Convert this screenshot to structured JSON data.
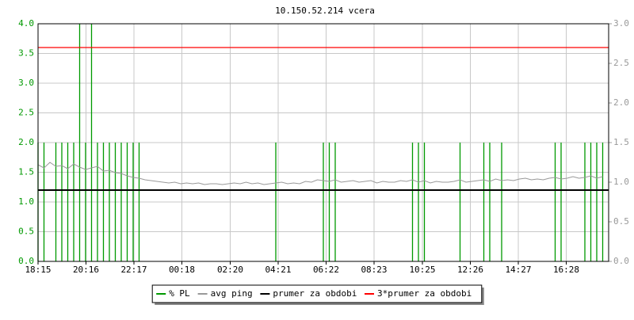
{
  "chart_data": {
    "type": "line",
    "title": "10.150.52.214 vcera",
    "x": [
      "18:15",
      "18:30",
      "18:45",
      "19:00",
      "19:15",
      "19:30",
      "19:45",
      "20:00",
      "20:15",
      "20:30",
      "20:45",
      "21:00",
      "21:15",
      "21:30",
      "21:45",
      "22:00",
      "22:15",
      "22:30",
      "22:45",
      "23:00",
      "23:15",
      "23:30",
      "23:45",
      "00:00",
      "00:15",
      "00:30",
      "00:45",
      "01:00",
      "01:15",
      "01:30",
      "01:45",
      "02:00",
      "02:15",
      "02:30",
      "02:45",
      "03:00",
      "03:15",
      "03:30",
      "03:45",
      "04:00",
      "04:15",
      "04:30",
      "04:45",
      "05:00",
      "05:15",
      "05:30",
      "05:45",
      "06:00",
      "06:15",
      "06:30",
      "06:45",
      "07:00",
      "07:15",
      "07:30",
      "07:45",
      "08:00",
      "08:15",
      "08:30",
      "08:45",
      "09:00",
      "09:15",
      "09:30",
      "09:45",
      "10:00",
      "10:15",
      "10:30",
      "10:45",
      "11:00",
      "11:15",
      "11:30",
      "11:45",
      "12:00",
      "12:15",
      "12:30",
      "12:45",
      "13:00",
      "13:15",
      "13:30",
      "13:45",
      "14:00",
      "14:15",
      "14:30",
      "14:45",
      "15:00",
      "15:15",
      "15:30",
      "15:45",
      "16:00",
      "16:15",
      "16:30",
      "16:45",
      "17:00",
      "17:15",
      "17:30",
      "17:45",
      "18:00"
    ],
    "xlim": [
      "18:15",
      "18:15"
    ],
    "xticks": [
      "18:15",
      "20:16",
      "22:17",
      "00:18",
      "02:20",
      "04:21",
      "06:22",
      "08:23",
      "10:25",
      "12:26",
      "14:27",
      "16:28"
    ],
    "ylim": [
      0,
      4
    ],
    "yticks": [
      {
        "value": 0,
        "label": "0.0"
      },
      0.5,
      {
        "value": 1,
        "label": "1.0"
      },
      1.5,
      {
        "value": 2,
        "label": "2.0"
      },
      2.5,
      {
        "value": 3,
        "label": "3.0"
      },
      3.5,
      {
        "value": 4,
        "label": "4.0"
      }
    ],
    "y2lim": [
      0,
      3
    ],
    "y2ticks": [
      {
        "value": 0,
        "label": "0.0"
      },
      0.5,
      {
        "value": 1,
        "label": "1.0"
      },
      1.5,
      {
        "value": 2,
        "label": "2.0"
      },
      2.5,
      {
        "value": 3,
        "label": "3.0"
      }
    ],
    "grid": true,
    "legend": "bottom",
    "series": [
      {
        "name": "% PL",
        "color": "#009900",
        "axis": "y",
        "style": "impulse",
        "values": [
          2,
          2,
          0,
          2,
          2,
          2,
          2,
          4,
          2,
          4,
          2,
          2,
          2,
          2,
          2,
          2,
          2,
          2,
          0,
          0,
          0,
          0,
          0,
          0,
          0,
          0,
          0,
          0,
          0,
          0,
          0,
          0,
          0,
          0,
          0,
          0,
          0,
          0,
          0,
          0,
          2,
          0,
          0,
          0,
          0,
          0,
          0,
          0,
          2,
          2,
          2,
          0,
          0,
          0,
          0,
          0,
          0,
          0,
          0,
          0,
          0,
          0,
          0,
          2,
          2,
          2,
          0,
          0,
          0,
          0,
          0,
          2,
          0,
          0,
          0,
          2,
          2,
          0,
          2,
          0,
          0,
          0,
          0,
          0,
          0,
          0,
          0,
          2,
          2,
          0,
          0,
          0,
          2,
          2,
          2,
          2
        ]
      },
      {
        "name": "avg ping",
        "color": "#999999",
        "axis": "y2",
        "style": "line",
        "values": [
          1.22,
          1.18,
          1.25,
          1.2,
          1.21,
          1.17,
          1.23,
          1.19,
          1.16,
          1.18,
          1.2,
          1.14,
          1.15,
          1.12,
          1.11,
          1.08,
          1.06,
          1.05,
          1.03,
          1.02,
          1.01,
          1.0,
          0.99,
          1.0,
          0.98,
          0.99,
          0.98,
          0.99,
          0.97,
          0.98,
          0.98,
          0.97,
          0.98,
          0.99,
          0.98,
          1.0,
          0.98,
          0.99,
          0.97,
          0.98,
          0.99,
          1.0,
          0.98,
          0.99,
          0.98,
          1.01,
          1.0,
          1.03,
          1.02,
          1.01,
          1.03,
          1.0,
          1.01,
          1.02,
          1.0,
          1.01,
          1.02,
          0.99,
          1.01,
          1.0,
          1.0,
          1.02,
          1.01,
          1.03,
          1.0,
          1.02,
          0.99,
          1.01,
          1.0,
          1.0,
          1.01,
          1.03,
          1.0,
          1.01,
          1.02,
          1.03,
          1.01,
          1.04,
          1.02,
          1.03,
          1.02,
          1.04,
          1.05,
          1.03,
          1.04,
          1.03,
          1.05,
          1.06,
          1.04,
          1.05,
          1.07,
          1.05,
          1.06,
          1.08,
          1.05,
          1.07
        ]
      },
      {
        "name": "prumer za obdobi",
        "color": "#000000",
        "axis": "y2",
        "style": "hline",
        "value": 0.9
      },
      {
        "name": "3*prumer za obdobi",
        "color": "#ff0000",
        "axis": "y2",
        "style": "hline",
        "value": 2.7
      }
    ]
  }
}
